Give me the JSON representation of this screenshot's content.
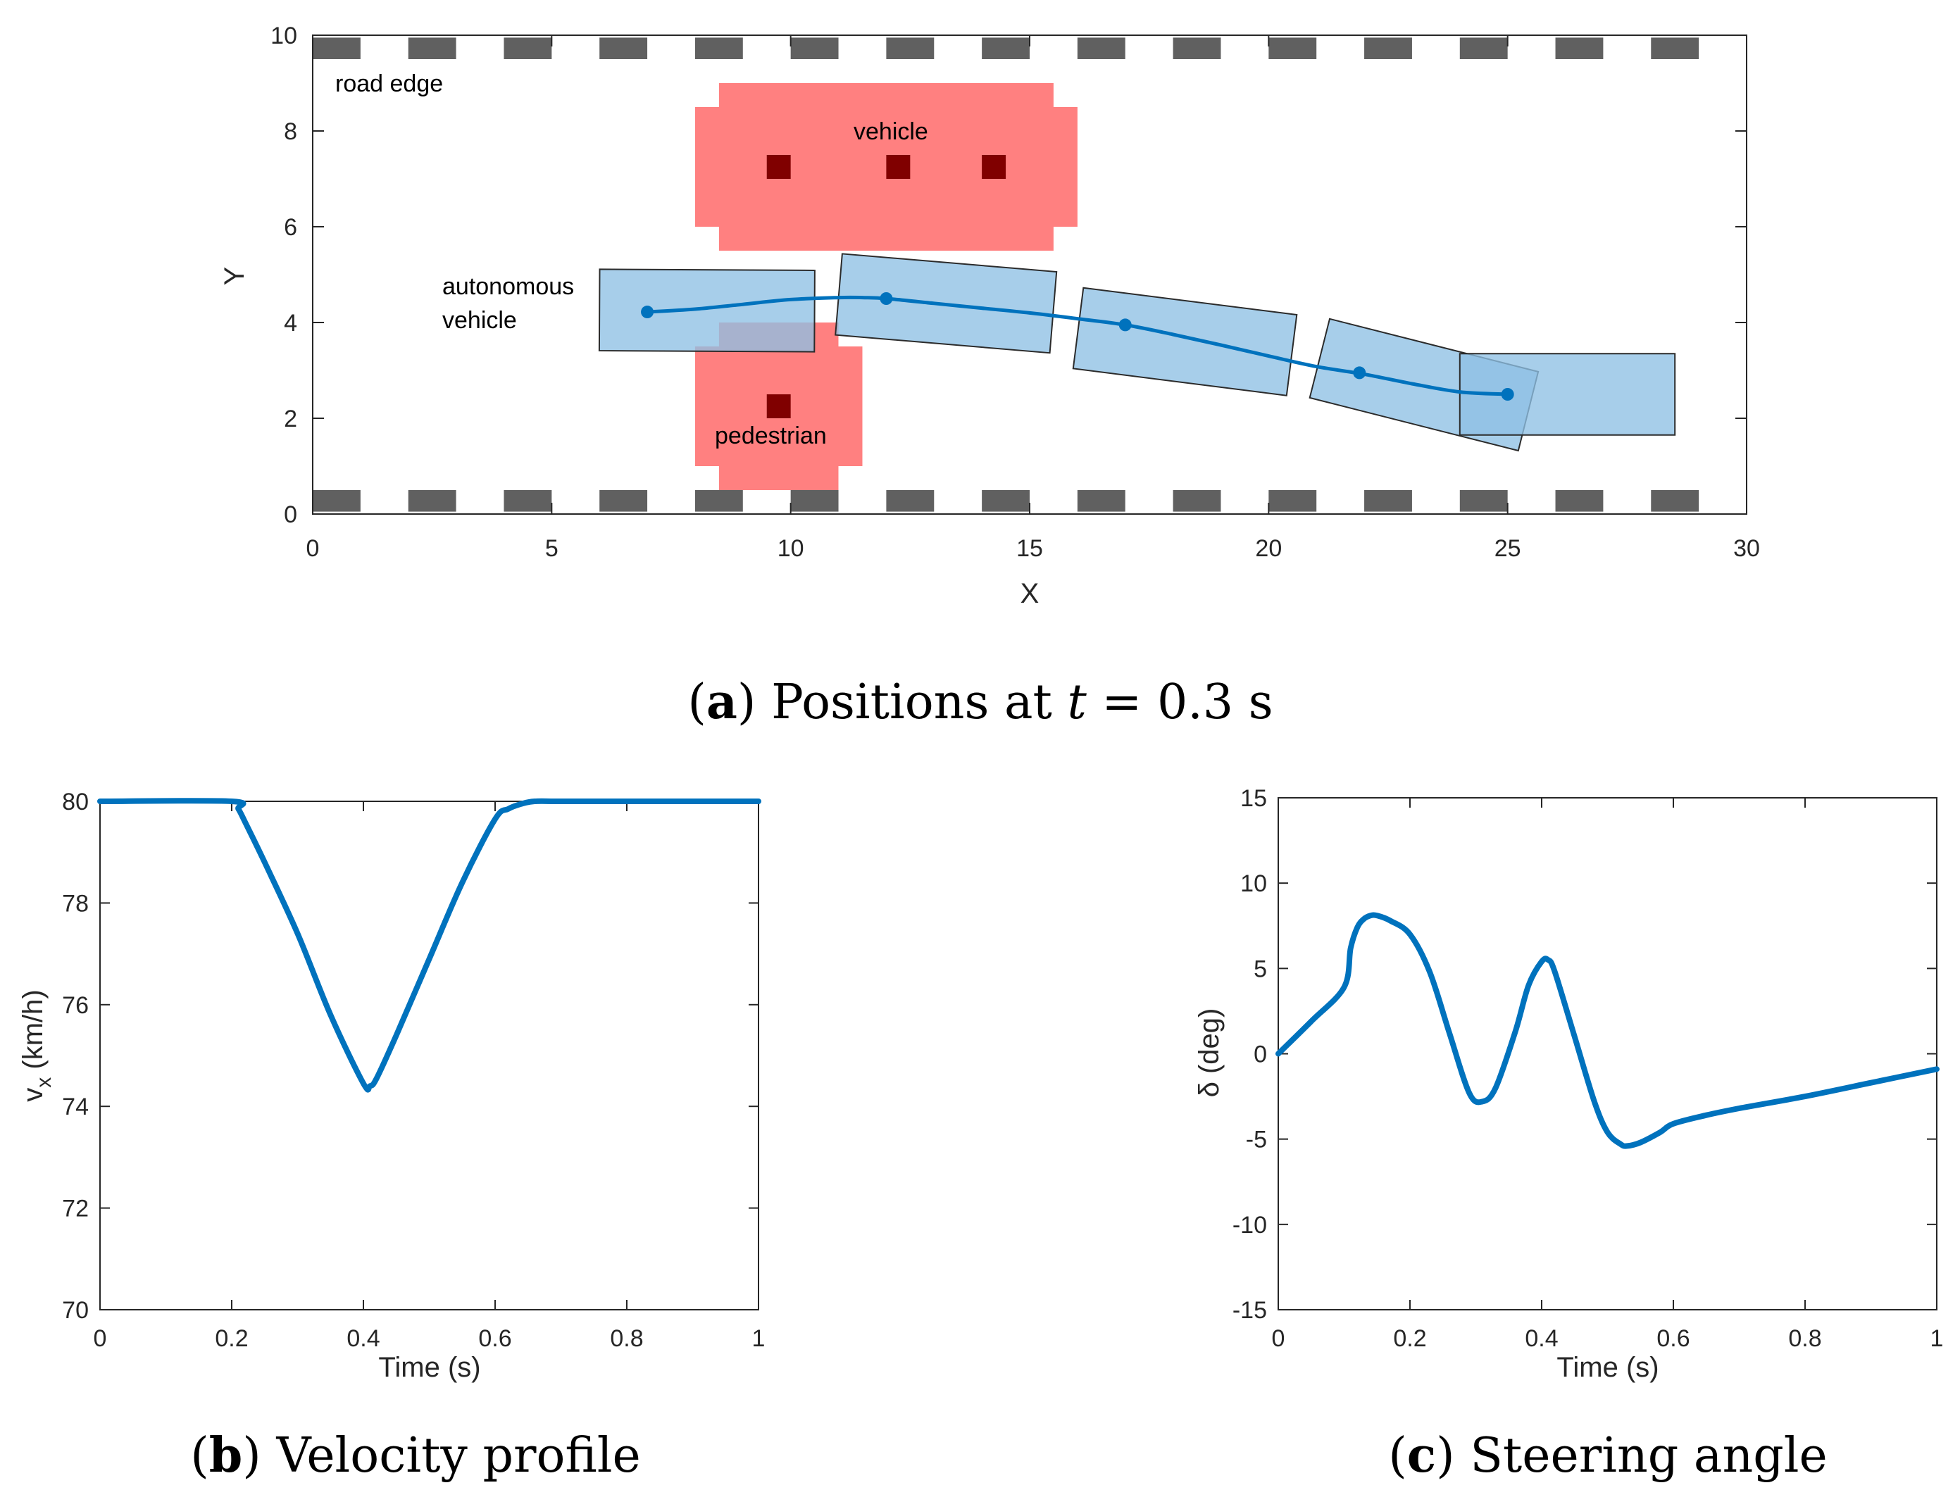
{
  "figure": {
    "panel_a_caption": {
      "letter": "a",
      "text": "Positions at ",
      "var": "t",
      "rest": " = 0.3 s"
    },
    "panel_b_caption": {
      "letter": "b",
      "text": "Velocity profile"
    },
    "panel_c_caption": {
      "letter": "c",
      "text": "Steering angle"
    }
  },
  "colors": {
    "road_edge": "#606060",
    "obstacle": "#ff8080",
    "obstacle_marker": "#800000",
    "ego_fill": "#8ec0e4",
    "ego_edge": "#2b2b2b",
    "line": "#0072bd",
    "axis": "#262626"
  },
  "chart_data": [
    {
      "type": "scatter",
      "title": "Positions at t = 0.3 s",
      "xlabel": "X",
      "ylabel": "Y",
      "xlim": [
        0,
        30
      ],
      "ylim": [
        0,
        10
      ],
      "xticks": [
        0,
        5,
        10,
        15,
        20,
        25,
        30
      ],
      "yticks": [
        0,
        2,
        4,
        6,
        8,
        10
      ],
      "annotations": {
        "road_edge": "road edge",
        "vehicle": "vehicle",
        "pedestrian": "pedestrian",
        "autonomous_line1": "autonomous",
        "autonomous_line2": "vehicle"
      },
      "road_edges": [
        {
          "y0": 0.05,
          "y1": 0.5
        },
        {
          "y0": 9.5,
          "y1": 9.95
        }
      ],
      "obstacles": [
        {
          "name": "vehicle",
          "x": [
            8,
            16
          ],
          "y": [
            5.5,
            9
          ],
          "notch": 0.5,
          "markers": [
            [
              9.75,
              7.25
            ],
            [
              12.25,
              7.25
            ],
            [
              14.25,
              7.25
            ]
          ]
        },
        {
          "name": "pedestrian",
          "x": [
            8,
            11.5
          ],
          "y": [
            0.5,
            4
          ],
          "notch": 0.5,
          "markers": [
            [
              9.75,
              2.25
            ]
          ]
        }
      ],
      "ego_rects": [
        {
          "cx": 8.25,
          "cy": 4.25,
          "len": 4.5,
          "wid": 1.7,
          "angle_deg": -0.3
        },
        {
          "cx": 13.25,
          "cy": 4.4,
          "len": 4.5,
          "wid": 1.7,
          "angle_deg": -4.8
        },
        {
          "cx": 18.25,
          "cy": 3.6,
          "len": 4.5,
          "wid": 1.7,
          "angle_deg": -7.2
        },
        {
          "cx": 23.25,
          "cy": 2.7,
          "len": 4.5,
          "wid": 1.7,
          "angle_deg": -14.2
        },
        {
          "cx": 26.25,
          "cy": 2.5,
          "len": 4.5,
          "wid": 1.7,
          "angle_deg": 0
        }
      ],
      "path": {
        "x": [
          7,
          8,
          9,
          10,
          11,
          11.5,
          12,
          13,
          14,
          15,
          16,
          17,
          18,
          19,
          20,
          21,
          22,
          23,
          24,
          25
        ],
        "y": [
          4.22,
          4.28,
          4.38,
          4.48,
          4.52,
          4.52,
          4.5,
          4.4,
          4.3,
          4.2,
          4.08,
          3.95,
          3.75,
          3.53,
          3.3,
          3.08,
          2.92,
          2.72,
          2.55,
          2.5
        ]
      },
      "waypoints": {
        "x": [
          7,
          12,
          17,
          21.9,
          25
        ],
        "y": [
          4.22,
          4.5,
          3.95,
          2.95,
          2.5
        ]
      }
    },
    {
      "type": "line",
      "title": "Velocity profile",
      "xlabel": "Time (s)",
      "ylabel_main": "v",
      "ylabel_sub": "x",
      "ylabel_unit": " (km/h)",
      "xlim": [
        0,
        1
      ],
      "ylim": [
        70,
        80
      ],
      "xticks": [
        "0",
        "0.2",
        "0.4",
        "0.6",
        "0.8",
        "1"
      ],
      "yticks": [
        "70",
        "72",
        "74",
        "76",
        "78",
        "80"
      ],
      "series": [
        {
          "name": "v_x",
          "x": [
            0,
            0.2,
            0.21,
            0.22,
            0.25,
            0.3,
            0.35,
            0.4,
            0.41,
            0.42,
            0.45,
            0.5,
            0.55,
            0.6,
            0.62,
            0.64,
            0.66,
            0.7,
            0.8,
            1.0
          ],
          "values": [
            80,
            80,
            79.85,
            79.6,
            78.8,
            77.4,
            75.8,
            74.45,
            74.4,
            74.55,
            75.4,
            76.9,
            78.4,
            79.65,
            79.85,
            79.95,
            80,
            80,
            80,
            80
          ]
        }
      ]
    },
    {
      "type": "line",
      "title": "Steering angle",
      "xlabel": "Time (s)",
      "ylabel": "δ (deg)",
      "xlim": [
        0,
        1
      ],
      "ylim": [
        -15,
        15
      ],
      "xticks": [
        "0",
        "0.2",
        "0.4",
        "0.6",
        "0.8",
        "1"
      ],
      "yticks": [
        "-15",
        "-10",
        "-5",
        "0",
        "5",
        "10",
        "15"
      ],
      "series": [
        {
          "name": "delta",
          "x": [
            0,
            0.05,
            0.1,
            0.11,
            0.12,
            0.13,
            0.14,
            0.15,
            0.17,
            0.2,
            0.23,
            0.26,
            0.29,
            0.31,
            0.33,
            0.36,
            0.38,
            0.4,
            0.41,
            0.42,
            0.45,
            0.48,
            0.5,
            0.52,
            0.53,
            0.55,
            0.58,
            0.6,
            0.65,
            0.7,
            0.8,
            0.9,
            1.0
          ],
          "values": [
            0,
            1.9,
            3.9,
            6.2,
            7.4,
            7.9,
            8.1,
            8.1,
            7.8,
            7.0,
            4.8,
            1.2,
            -2.3,
            -2.8,
            -2.0,
            1.3,
            4.0,
            5.4,
            5.5,
            4.8,
            1.0,
            -2.8,
            -4.6,
            -5.3,
            -5.4,
            -5.2,
            -4.6,
            -4.1,
            -3.6,
            -3.2,
            -2.5,
            -1.7,
            -0.9
          ]
        }
      ]
    }
  ]
}
